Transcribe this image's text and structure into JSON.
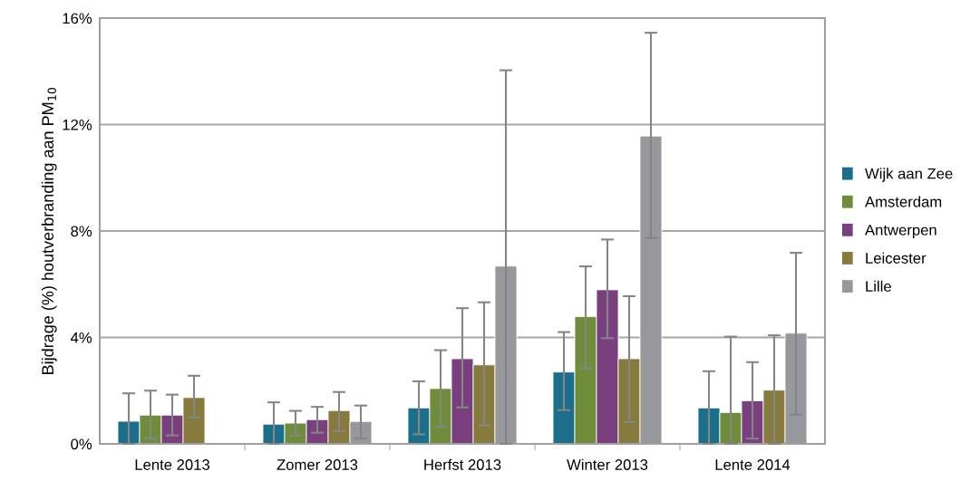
{
  "chart_data": {
    "type": "bar",
    "ylabel": "Bijdrage (%) houtverbranding aan PM$_{10}$",
    "categories": [
      "Lente 2013",
      "Zomer 2013",
      "Herfst 2013",
      "Winter 2013",
      "Lente 2014"
    ],
    "series": [
      {
        "name": "Wijk aan Zee",
        "color": "#1b6f8a",
        "values": [
          0.85,
          0.74,
          1.35,
          2.7,
          1.35
        ],
        "errors": [
          [
            0,
            1.9
          ],
          [
            0,
            1.56
          ],
          [
            0.36,
            2.35
          ],
          [
            1.27,
            4.2
          ],
          [
            0,
            2.73
          ]
        ]
      },
      {
        "name": "Amsterdam",
        "color": "#6f8c3a",
        "values": [
          1.08,
          0.78,
          2.08,
          4.78,
          1.18
        ],
        "errors": [
          [
            0.2,
            2.0
          ],
          [
            0.32,
            1.24
          ],
          [
            0.65,
            3.52
          ],
          [
            2.84,
            6.67
          ],
          [
            0,
            4.03
          ]
        ]
      },
      {
        "name": "Antwerpen",
        "color": "#7a3f7e",
        "values": [
          1.08,
          0.91,
          3.2,
          5.79,
          1.62
        ],
        "errors": [
          [
            0.32,
            1.85
          ],
          [
            0.42,
            1.39
          ],
          [
            1.37,
            5.1
          ],
          [
            3.97,
            7.68
          ],
          [
            0.2,
            3.07
          ]
        ]
      },
      {
        "name": "Leicester",
        "color": "#877a3d",
        "values": [
          1.74,
          1.25,
          2.97,
          3.2,
          2.02
        ],
        "errors": [
          [
            0.99,
            2.56
          ],
          [
            0.48,
            1.95
          ],
          [
            0.7,
            5.32
          ],
          [
            0.82,
            5.55
          ],
          [
            0,
            4.08
          ]
        ]
      },
      {
        "name": "Lille",
        "color": "#97989c",
        "values": [
          null,
          0.84,
          6.68,
          11.57,
          4.16
        ],
        "errors": [
          null,
          [
            0.2,
            1.44
          ],
          [
            0,
            14.04
          ],
          [
            7.74,
            15.45
          ],
          [
            1.1,
            7.18
          ]
        ]
      }
    ],
    "ylim": [
      0,
      16
    ],
    "yticks": [
      {
        "value": 0,
        "label": "0%"
      },
      {
        "value": 4,
        "label": "4%"
      },
      {
        "value": 8,
        "label": "8%"
      },
      {
        "value": 12,
        "label": "12%"
      },
      {
        "value": 16,
        "label": "16%"
      }
    ],
    "grid": "y",
    "legend": "right"
  }
}
